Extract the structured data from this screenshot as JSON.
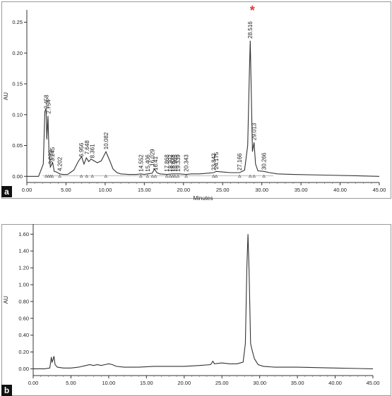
{
  "chart_data": [
    {
      "panel": "a",
      "type": "line",
      "xlabel": "Minutes",
      "ylabel": "AU",
      "xlim": [
        0,
        45
      ],
      "ylim": [
        -0.01,
        0.27
      ],
      "x_ticks": [
        "0.00",
        "5.00",
        "10.00",
        "15.00",
        "20.00",
        "25.00",
        "30.00",
        "35.00",
        "40.00",
        "45.00"
      ],
      "y_ticks": [
        "0.00",
        "0.05",
        "0.10",
        "0.15",
        "0.20",
        "0.25"
      ],
      "series": [
        {
          "x": [
            0.0,
            1.5,
            2.1,
            2.3,
            2.45,
            2.55,
            2.7,
            2.82,
            3.0,
            3.2,
            3.3,
            3.5,
            3.8,
            4.2,
            4.6,
            5.2,
            6.0,
            6.6,
            7.0,
            7.3,
            7.6,
            7.9,
            8.2,
            8.6,
            9.0,
            9.5,
            10.1,
            10.6,
            11.0,
            11.5,
            12.0,
            13.0,
            14.0,
            14.55,
            15.0,
            15.4,
            16.0,
            16.3,
            16.6,
            17.0,
            17.87,
            18.5,
            19.0,
            19.5,
            20.34,
            21.0,
            22.0,
            23.0,
            23.84,
            24.18,
            25.0,
            26.0,
            27.17,
            27.8,
            28.2,
            28.4,
            28.52,
            28.65,
            28.8,
            29.01,
            29.2,
            29.5,
            30.27,
            31.0,
            32.0,
            34.0,
            38.0,
            42.0,
            45.0
          ],
          "y": [
            0.0,
            0.0,
            0.02,
            0.105,
            0.11,
            0.06,
            0.098,
            0.04,
            0.015,
            0.02,
            0.022,
            0.008,
            0.007,
            0.004,
            0.003,
            0.003,
            0.01,
            0.025,
            0.032,
            0.02,
            0.03,
            0.024,
            0.028,
            0.025,
            0.022,
            0.025,
            0.04,
            0.025,
            0.012,
            0.006,
            0.004,
            0.003,
            0.003,
            0.004,
            0.003,
            0.004,
            0.005,
            0.012,
            0.006,
            0.004,
            0.003,
            0.004,
            0.004,
            0.004,
            0.003,
            0.004,
            0.004,
            0.005,
            0.006,
            0.008,
            0.007,
            0.006,
            0.006,
            0.01,
            0.05,
            0.16,
            0.22,
            0.14,
            0.04,
            0.055,
            0.02,
            0.009,
            0.008,
            0.006,
            0.004,
            0.003,
            0.002,
            0.001,
            0.0
          ]
        }
      ],
      "peak_labels": [
        {
          "x": 2.458,
          "y": 0.106,
          "text": "2.458"
        },
        {
          "x": 2.754,
          "y": 0.098,
          "text": "2.754"
        },
        {
          "x": 3.02,
          "y": 0.016,
          "text": "3.020"
        },
        {
          "x": 3.245,
          "y": 0.021,
          "text": "3.245"
        },
        {
          "x": 4.202,
          "y": 0.005,
          "text": "4.202"
        },
        {
          "x": 6.956,
          "y": 0.028,
          "text": "6.956"
        },
        {
          "x": 7.648,
          "y": 0.032,
          "text": "7.648"
        },
        {
          "x": 8.361,
          "y": 0.026,
          "text": "8.361"
        },
        {
          "x": 10.082,
          "y": 0.04,
          "text": "10.082"
        },
        {
          "x": 14.552,
          "y": 0.004,
          "text": "14.552"
        },
        {
          "x": 15.406,
          "y": 0.004,
          "text": "15.406"
        },
        {
          "x": 16.029,
          "y": 0.013,
          "text": "16.029"
        },
        {
          "x": 16.41,
          "y": 0.006,
          "text": "16.41"
        },
        {
          "x": 17.868,
          "y": 0.004,
          "text": "17.868"
        },
        {
          "x": 18.3,
          "y": 0.004,
          "text": "18.302"
        },
        {
          "x": 18.62,
          "y": 0.004,
          "text": "18.623"
        },
        {
          "x": 18.9,
          "y": 0.004,
          "text": "18.905"
        },
        {
          "x": 19.3,
          "y": 0.004,
          "text": "19.339"
        },
        {
          "x": 20.343,
          "y": 0.004,
          "text": "20.343"
        },
        {
          "x": 23.842,
          "y": 0.006,
          "text": "23.842"
        },
        {
          "x": 24.175,
          "y": 0.008,
          "text": "24.175"
        },
        {
          "x": 27.166,
          "y": 0.006,
          "text": "27.166"
        },
        {
          "x": 28.516,
          "y": 0.22,
          "text": "28.516"
        },
        {
          "x": 29.013,
          "y": 0.055,
          "text": "29.013"
        },
        {
          "x": 30.266,
          "y": 0.007,
          "text": "30.266"
        }
      ],
      "marker": {
        "x": 28.516,
        "text": "*",
        "color": "#e53935"
      }
    },
    {
      "panel": "b",
      "type": "line",
      "ylabel": "AU",
      "xlim": [
        0,
        45
      ],
      "ylim": [
        -0.08,
        1.72
      ],
      "x_ticks": [
        "0.00",
        "5.00",
        "10.00",
        "15.00",
        "20.00",
        "25.00",
        "30.00",
        "35.00",
        "40.00",
        "45.00"
      ],
      "y_ticks": [
        "0.00",
        "0.20",
        "0.40",
        "0.60",
        "0.80",
        "1.00",
        "1.20",
        "1.40",
        "1.60"
      ],
      "series": [
        {
          "x": [
            0.0,
            1.5,
            2.2,
            2.4,
            2.5,
            2.6,
            2.75,
            2.9,
            3.2,
            4.0,
            5.0,
            6.0,
            7.0,
            7.5,
            8.0,
            8.5,
            9.0,
            9.5,
            10.0,
            10.5,
            11.0,
            12.0,
            14.0,
            16.0,
            18.0,
            20.0,
            22.0,
            23.5,
            23.8,
            24.0,
            25.0,
            26.0,
            27.0,
            27.8,
            28.1,
            28.3,
            28.45,
            28.6,
            28.8,
            29.0,
            29.3,
            29.8,
            30.5,
            32.0,
            35.0,
            40.0,
            45.0
          ],
          "y": [
            0.0,
            0.0,
            0.01,
            0.14,
            0.08,
            0.1,
            0.15,
            0.05,
            0.02,
            0.01,
            0.01,
            0.02,
            0.04,
            0.05,
            0.04,
            0.05,
            0.04,
            0.05,
            0.06,
            0.05,
            0.03,
            0.02,
            0.02,
            0.03,
            0.03,
            0.03,
            0.04,
            0.05,
            0.09,
            0.06,
            0.07,
            0.06,
            0.06,
            0.08,
            0.3,
            1.2,
            1.6,
            1.15,
            0.3,
            0.22,
            0.12,
            0.05,
            0.03,
            0.02,
            0.02,
            0.01,
            0.0
          ]
        }
      ]
    }
  ]
}
